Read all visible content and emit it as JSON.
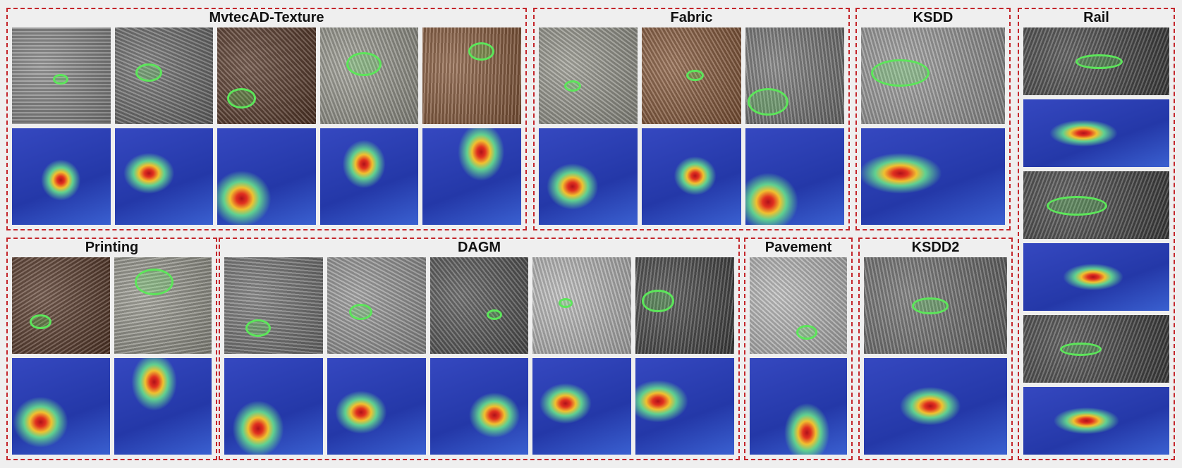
{
  "panels": [
    {
      "title": "MvtecAD-Texture"
    },
    {
      "title": "Fabric"
    },
    {
      "title": "KSDD"
    },
    {
      "title": "Rail"
    },
    {
      "title": "Printing"
    },
    {
      "title": "DAGM"
    },
    {
      "title": "Pavement"
    },
    {
      "title": "KSDD2"
    }
  ]
}
